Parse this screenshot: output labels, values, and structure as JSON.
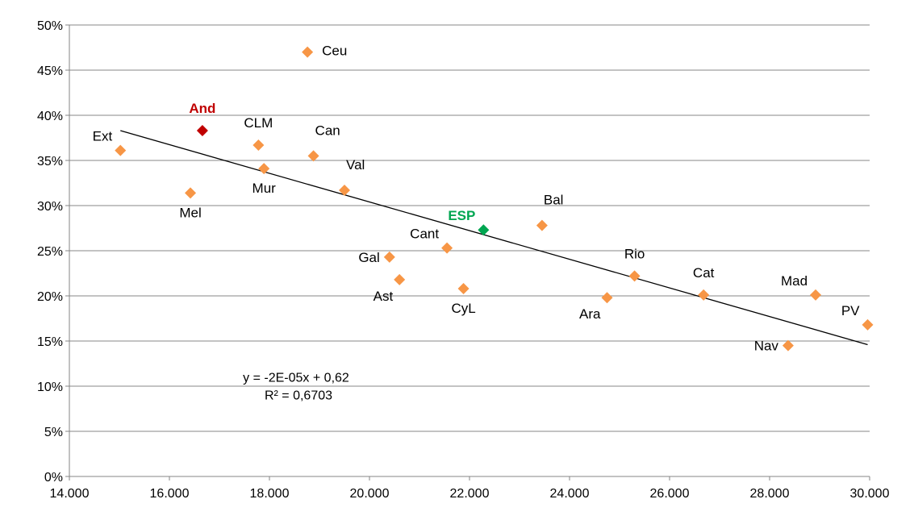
{
  "chart_data": {
    "type": "scatter",
    "xlim": [
      14000,
      30000
    ],
    "ylim": [
      0,
      0.5
    ],
    "x_ticks": [
      {
        "value": 14000,
        "label": "14.000"
      },
      {
        "value": 16000,
        "label": "16.000"
      },
      {
        "value": 18000,
        "label": "18.000"
      },
      {
        "value": 20000,
        "label": "20.000"
      },
      {
        "value": 22000,
        "label": "22.000"
      },
      {
        "value": 24000,
        "label": "24.000"
      },
      {
        "value": 26000,
        "label": "26.000"
      },
      {
        "value": 28000,
        "label": "28.000"
      },
      {
        "value": 30000,
        "label": "30.000"
      }
    ],
    "y_ticks": [
      {
        "value": 0.0,
        "label": "0%"
      },
      {
        "value": 0.05,
        "label": "5%"
      },
      {
        "value": 0.1,
        "label": "10%"
      },
      {
        "value": 0.15,
        "label": "15%"
      },
      {
        "value": 0.2,
        "label": "20%"
      },
      {
        "value": 0.25,
        "label": "25%"
      },
      {
        "value": 0.3,
        "label": "30%"
      },
      {
        "value": 0.35,
        "label": "35%"
      },
      {
        "value": 0.4,
        "label": "40%"
      },
      {
        "value": 0.45,
        "label": "45%"
      },
      {
        "value": 0.5,
        "label": "50%"
      }
    ],
    "grid": {
      "horizontal": true,
      "vertical": false
    },
    "colors": {
      "default": "#F79646",
      "highlight_and": "#C00000",
      "highlight_esp": "#00A651"
    },
    "points": [
      {
        "label": "Ext",
        "x": 15020,
        "y": 0.361,
        "color": "default",
        "label_pos": "above-left"
      },
      {
        "label": "Mel",
        "x": 16420,
        "y": 0.314,
        "color": "default",
        "label_pos": "below"
      },
      {
        "label": "And",
        "x": 16660,
        "y": 0.383,
        "color": "highlight_and",
        "label_pos": "above",
        "bold": true
      },
      {
        "label": "CLM",
        "x": 17780,
        "y": 0.367,
        "color": "default",
        "label_pos": "above"
      },
      {
        "label": "Mur",
        "x": 17890,
        "y": 0.341,
        "color": "default",
        "label_pos": "below"
      },
      {
        "label": "Ceu",
        "x": 18760,
        "y": 0.47,
        "color": "default",
        "label_pos": "right"
      },
      {
        "label": "Can",
        "x": 18880,
        "y": 0.355,
        "color": "default",
        "label_pos": "above-right"
      },
      {
        "label": "Val",
        "x": 19500,
        "y": 0.317,
        "color": "default",
        "label_pos": "above-right"
      },
      {
        "label": "Gal",
        "x": 20400,
        "y": 0.243,
        "color": "default",
        "label_pos": "left"
      },
      {
        "label": "Ast",
        "x": 20600,
        "y": 0.218,
        "color": "default",
        "label_pos": "below-left"
      },
      {
        "label": "Cant",
        "x": 21550,
        "y": 0.253,
        "color": "default",
        "label_pos": "above-left"
      },
      {
        "label": "CyL",
        "x": 21880,
        "y": 0.208,
        "color": "default",
        "label_pos": "below"
      },
      {
        "label": "ESP",
        "x": 22280,
        "y": 0.273,
        "color": "highlight_esp",
        "label_pos": "above-left",
        "bold": true
      },
      {
        "label": "Bal",
        "x": 23450,
        "y": 0.278,
        "color": "default",
        "label_pos": "above-right"
      },
      {
        "label": "Ara",
        "x": 24750,
        "y": 0.198,
        "color": "default",
        "label_pos": "below-left"
      },
      {
        "label": "Rio",
        "x": 25300,
        "y": 0.222,
        "color": "default",
        "label_pos": "above"
      },
      {
        "label": "Cat",
        "x": 26680,
        "y": 0.201,
        "color": "default",
        "label_pos": "above"
      },
      {
        "label": "Nav",
        "x": 28370,
        "y": 0.145,
        "color": "default",
        "label_pos": "left"
      },
      {
        "label": "Mad",
        "x": 28920,
        "y": 0.201,
        "color": "default",
        "label_pos": "above-left"
      },
      {
        "label": "PV",
        "x": 29960,
        "y": 0.168,
        "color": "default",
        "label_pos": "above-left"
      }
    ],
    "trendline": {
      "x_start": 15020,
      "y_start": 0.383,
      "x_end": 29960,
      "y_end": 0.146,
      "equation": "y = -2E-05x + 0,62",
      "r2": "R² = 0,6703",
      "label_anchor": {
        "x": 19500,
        "y": 0.095
      }
    }
  }
}
